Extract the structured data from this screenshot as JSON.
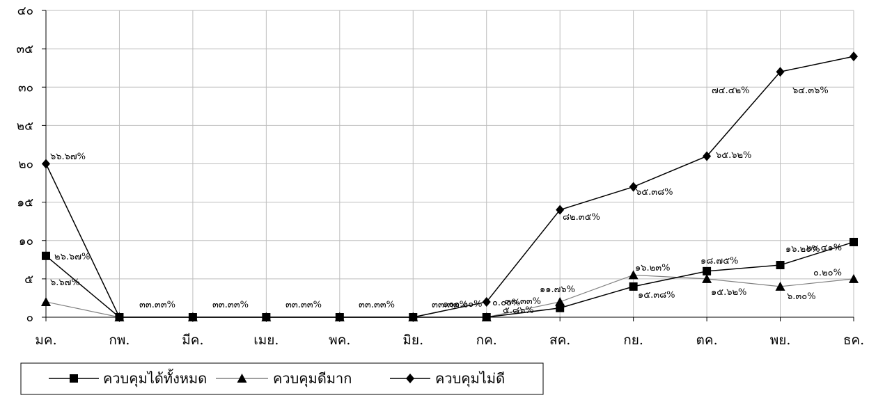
{
  "chart_data": {
    "type": "line",
    "categories": [
      "มค.",
      "กพ.",
      "มีค.",
      "เมย.",
      "พค.",
      "มิย.",
      "กค.",
      "สค.",
      "กย.",
      "ตค.",
      "พย.",
      "ธค."
    ],
    "y_tick_labels": [
      "๐",
      "๕",
      "๑๐",
      "๑๕",
      "๒๐",
      "๒๕",
      "๓๐",
      "๓๕",
      "๔๐"
    ],
    "ylim": [
      0,
      40
    ],
    "y_step": 5,
    "grid": true,
    "legend_position": "bottom-left",
    "series": [
      {
        "name": "ควบคุมได้ทั้งหมด",
        "marker": "square",
        "color": "#000000",
        "values": [
          8.0,
          0,
          0,
          0,
          0,
          0,
          0,
          1.2,
          4.0,
          6.0,
          6.8,
          9.8
        ],
        "labels": [
          "๒๖.๖๗%",
          "",
          "",
          "",
          "",
          "",
          "",
          "๕.๘๖%",
          "๑๕.๓๘%",
          "",
          "",
          "๒๐.๔๑%"
        ]
      },
      {
        "name": "ควบคุมดีมาก",
        "marker": "triangle",
        "color": "#808080",
        "values": [
          2.0,
          0,
          0,
          0,
          0,
          0,
          0,
          2.0,
          5.5,
          5.0,
          4.0,
          5.0
        ],
        "labels": [
          "๖.๖๗%",
          "",
          "",
          "",
          "",
          "",
          "๐.๐๐%",
          "๑๑.๗๖%",
          "๑๖.๒๓%",
          "๑๕.๖๒%",
          "๖.๓๐%",
          "๐.๒๐%"
        ]
      },
      {
        "name": "ควบคุมไม่ดี",
        "marker": "diamond",
        "color": "#000000",
        "values": [
          20.0,
          0,
          0,
          0,
          0,
          0,
          2.0,
          14.0,
          17.0,
          21.0,
          32.0,
          34.0
        ],
        "labels": [
          "๖๖.๖๗%",
          "",
          "",
          "",
          "",
          "",
          "",
          "๘๒.๓๕%",
          "๖๕.๓๘%",
          "๖๕.๖๒%",
          "๗๔.๔๒%",
          "๖๔.๓๖%"
        ]
      }
    ],
    "extra_labels": [
      "๓๓.๓๓%",
      "๓๓.๓๓%",
      "๓๓.๓๓%",
      "๓๓.๓๓%",
      "๓๓.๓๓%",
      "๓๓.๓๓%",
      "๑๐๐.๐๐%",
      "๑๘.๗๕%",
      "๑๖.๒๐%"
    ]
  }
}
